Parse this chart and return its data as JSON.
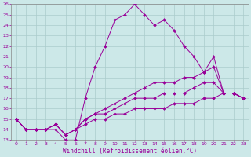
{
  "title": "",
  "xlabel": "Windchill (Refroidissement éolien,°C)",
  "ylabel": "",
  "background_color": "#cce8e8",
  "grid_color": "#aacccc",
  "line_color": "#990099",
  "xlim": [
    -0.5,
    23.5
  ],
  "ylim": [
    13,
    26
  ],
  "xticks": [
    0,
    1,
    2,
    3,
    4,
    5,
    6,
    7,
    8,
    9,
    10,
    11,
    12,
    13,
    14,
    15,
    16,
    17,
    18,
    19,
    20,
    21,
    22,
    23
  ],
  "yticks": [
    13,
    14,
    15,
    16,
    17,
    18,
    19,
    20,
    21,
    22,
    23,
    24,
    25,
    26
  ],
  "lines": [
    [
      15.0,
      14.0,
      14.0,
      14.0,
      14.0,
      13.0,
      13.0,
      17.0,
      20.0,
      22.0,
      24.5,
      25.0,
      26.0,
      25.0,
      24.0,
      24.5,
      23.5,
      22.0,
      21.0,
      19.5,
      21.0,
      17.5,
      17.5,
      17.0
    ],
    [
      15.0,
      14.0,
      14.0,
      14.0,
      14.5,
      13.5,
      14.0,
      15.0,
      15.5,
      16.0,
      16.5,
      17.0,
      17.5,
      18.0,
      18.5,
      18.5,
      18.5,
      19.0,
      19.0,
      19.5,
      20.0,
      17.5,
      17.5,
      17.0
    ],
    [
      15.0,
      14.0,
      14.0,
      14.0,
      14.5,
      13.5,
      14.0,
      15.0,
      15.5,
      15.5,
      16.0,
      16.5,
      17.0,
      17.0,
      17.0,
      17.5,
      17.5,
      17.5,
      18.0,
      18.5,
      18.5,
      17.5,
      17.5,
      17.0
    ],
    [
      15.0,
      14.0,
      14.0,
      14.0,
      14.5,
      13.5,
      14.0,
      14.5,
      15.0,
      15.0,
      15.5,
      15.5,
      16.0,
      16.0,
      16.0,
      16.0,
      16.5,
      16.5,
      16.5,
      17.0,
      17.0,
      17.5,
      17.5,
      17.0
    ]
  ],
  "marker": "D",
  "markersize": 2.0,
  "linewidth": 0.7,
  "tick_fontsize": 4.5,
  "xlabel_fontsize": 5.5,
  "spine_color": "#888888"
}
